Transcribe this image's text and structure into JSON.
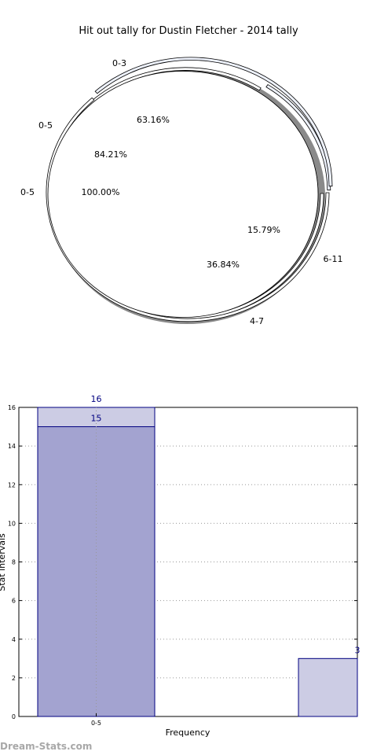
{
  "chart_data": [
    {
      "type": "pie",
      "title": "Hit out tally for Dustin Fletcher - 2014 tally",
      "rings": [
        {
          "name": "inner",
          "slices": [
            {
              "label": "0-5",
              "pct_label": "100.00%",
              "value": 100.0,
              "color": "#ffffff"
            }
          ]
        },
        {
          "name": "middle",
          "slices": [
            {
              "label": "0-5",
              "pct_label": "84.21%",
              "value": 84.21,
              "color": "#ffffff"
            },
            {
              "label": "4-7",
              "pct_label": "15.79%",
              "value": 15.79,
              "color": "#eef2fc"
            }
          ]
        },
        {
          "name": "outer",
          "slices": [
            {
              "label": "0-3",
              "pct_label": "63.16%",
              "value": 63.16,
              "color": "#ffffff"
            },
            {
              "label": "6-11",
              "pct_label": "36.84%",
              "value": 36.84,
              "color": "#eef2fc"
            }
          ]
        }
      ]
    },
    {
      "type": "bar",
      "categories": [
        "0-5"
      ],
      "series": [
        {
          "values": [
            16
          ],
          "color": "#cccce4"
        },
        {
          "values": [
            15
          ],
          "color": "#a3a3d0"
        }
      ],
      "extra_bar": {
        "value": 3,
        "label": "3"
      },
      "xlabel": "Frequency",
      "ylabel": "Stat intervals",
      "ylim": [
        0,
        16
      ],
      "yticks": [
        0,
        2,
        4,
        6,
        8,
        10,
        12,
        14,
        16
      ],
      "grid": true
    }
  ],
  "watermark": "Dream-Stats.com"
}
